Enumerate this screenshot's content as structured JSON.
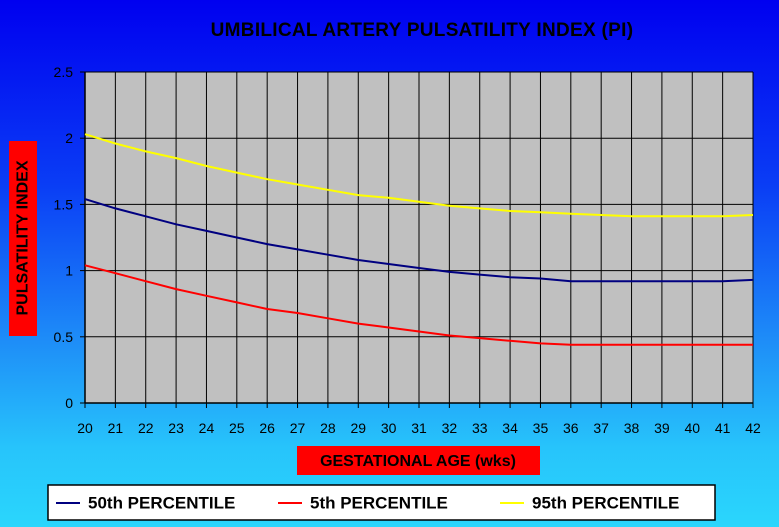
{
  "chart_data": {
    "type": "line",
    "title": "UMBILICAL ARTERY PULSATILITY INDEX (PI)",
    "xlabel": "GESTATIONAL AGE (wks)",
    "ylabel": "PULSATILITY INDEX",
    "x": [
      20,
      21,
      22,
      23,
      24,
      25,
      26,
      27,
      28,
      29,
      30,
      31,
      32,
      33,
      34,
      35,
      36,
      37,
      38,
      39,
      40,
      41,
      42
    ],
    "xlim": [
      20,
      42
    ],
    "ylim": [
      0,
      2.5
    ],
    "yticks": [
      "0",
      "0.5",
      "1",
      "1.5",
      "2",
      "2.5"
    ],
    "grid": true,
    "legend_position": "bottom",
    "plot_background": "#c0c0c0",
    "series": [
      {
        "name": "50th PERCENTILE",
        "color": "#000080",
        "values": [
          1.54,
          1.47,
          1.41,
          1.35,
          1.3,
          1.25,
          1.2,
          1.16,
          1.12,
          1.08,
          1.05,
          1.02,
          0.99,
          0.97,
          0.95,
          0.94,
          0.92,
          0.92,
          0.92,
          0.92,
          0.92,
          0.92,
          0.93
        ]
      },
      {
        "name": "5th PERCENTILE",
        "color": "#ff0000",
        "values": [
          1.04,
          0.98,
          0.92,
          0.86,
          0.81,
          0.76,
          0.71,
          0.68,
          0.64,
          0.6,
          0.57,
          0.54,
          0.51,
          0.49,
          0.47,
          0.45,
          0.44,
          0.44,
          0.44,
          0.44,
          0.44,
          0.44,
          0.44
        ]
      },
      {
        "name": "95th PERCENTILE",
        "color": "#ffff00",
        "values": [
          2.03,
          1.96,
          1.9,
          1.85,
          1.79,
          1.74,
          1.69,
          1.65,
          1.61,
          1.57,
          1.55,
          1.52,
          1.49,
          1.47,
          1.45,
          1.44,
          1.43,
          1.42,
          1.41,
          1.41,
          1.41,
          1.41,
          1.42
        ]
      }
    ]
  }
}
